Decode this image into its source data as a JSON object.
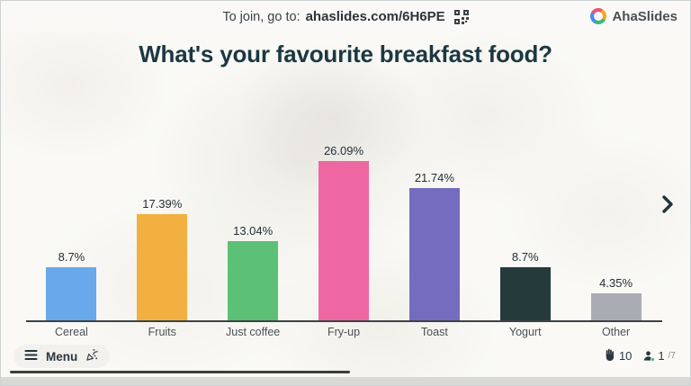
{
  "join_bar": {
    "prefix": "To join, go to:",
    "code_url": "ahaslides.com/6H6PE"
  },
  "brand": {
    "name": "AhaSlides"
  },
  "slide": {
    "title": "What's your favourite breakfast food?"
  },
  "chart_data": {
    "type": "bar",
    "categories": [
      "Cereal",
      "Fruits",
      "Just coffee",
      "Fry-up",
      "Toast",
      "Yogurt",
      "Other"
    ],
    "values": [
      8.7,
      17.39,
      13.04,
      26.09,
      21.74,
      8.7,
      4.35
    ],
    "value_labels": [
      "8.7%",
      "17.39%",
      "13.04%",
      "26.09%",
      "21.74%",
      "8.7%",
      "4.35%"
    ],
    "bar_colors": [
      "#69A8EB",
      "#F2B040",
      "#5CC077",
      "#EE67A2",
      "#746CBE",
      "#253B3B",
      "#A9ADB3"
    ],
    "title": "What's your favourite breakfast food?",
    "xlabel": "",
    "ylabel": "",
    "ylim": [
      0,
      30
    ],
    "grid": false,
    "legend": false
  },
  "footer": {
    "menu_label": "Menu",
    "hands_count": "10",
    "slide_current": "1",
    "slide_total": "/7"
  },
  "colors": {
    "title_text": "#1c3842",
    "axis": "#3e4246",
    "online_dot": "#35b96c"
  }
}
